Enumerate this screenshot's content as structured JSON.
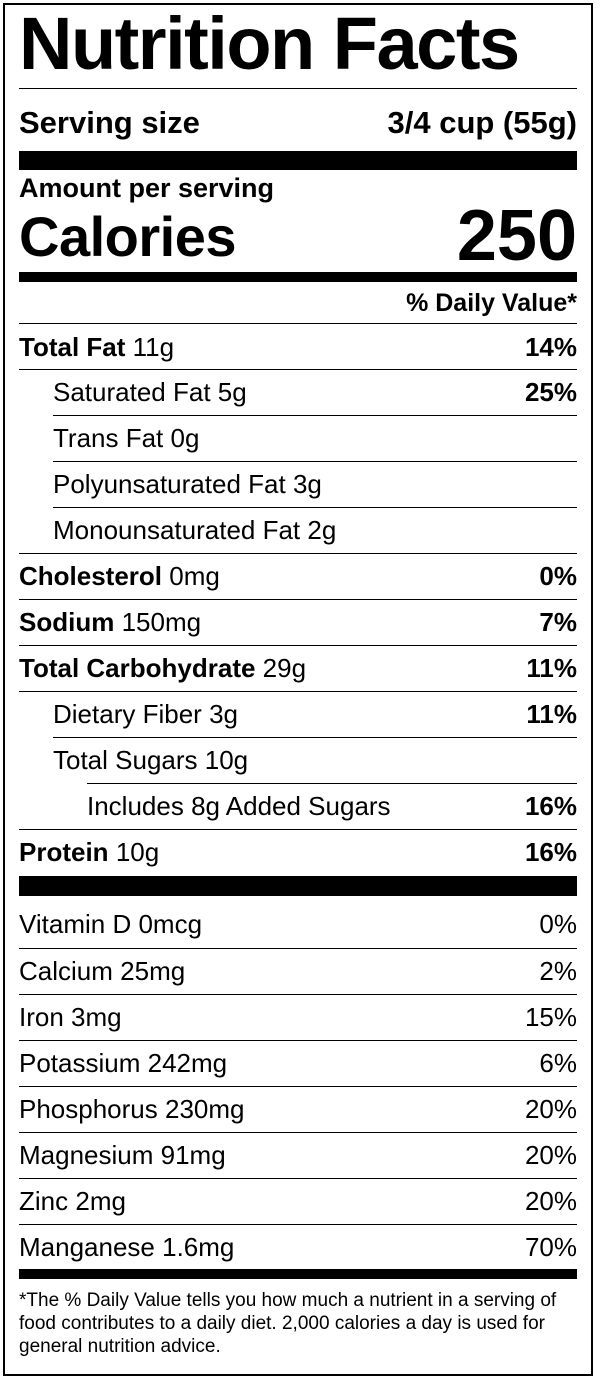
{
  "title": "Nutrition Facts",
  "serving": {
    "label": "Serving size",
    "value": "3/4 cup (55g)"
  },
  "amount_per_serving": "Amount per serving",
  "calories": {
    "label": "Calories",
    "value": "250"
  },
  "daily_value_header": "% Daily Value*",
  "nutrients": [
    {
      "name": "Total Fat",
      "amount": "11g",
      "dv": "14%"
    },
    {
      "name": "Saturated Fat",
      "amount": "5g",
      "dv": "25%"
    },
    {
      "name": "Trans Fat",
      "amount": "0g",
      "dv": ""
    },
    {
      "name": "Polyunsaturated Fat",
      "amount": "3g",
      "dv": ""
    },
    {
      "name": "Monounsaturated Fat",
      "amount": "2g",
      "dv": ""
    },
    {
      "name": "Cholesterol",
      "amount": "0mg",
      "dv": "0%"
    },
    {
      "name": "Sodium",
      "amount": "150mg",
      "dv": "7%"
    },
    {
      "name": "Total Carbohydrate",
      "amount": "29g",
      "dv": "11%"
    },
    {
      "name": "Dietary Fiber",
      "amount": "3g",
      "dv": "11%"
    },
    {
      "name": "Total Sugars",
      "amount": "10g",
      "dv": ""
    },
    {
      "name": "Includes 8g Added Sugars",
      "amount": "",
      "dv": "16%"
    },
    {
      "name": "Protein",
      "amount": "10g",
      "dv": "16%"
    }
  ],
  "vitamins": [
    {
      "name": "Vitamin D",
      "amount": "0mcg",
      "dv": "0%"
    },
    {
      "name": "Calcium",
      "amount": "25mg",
      "dv": "2%"
    },
    {
      "name": "Iron",
      "amount": "3mg",
      "dv": "15%"
    },
    {
      "name": "Potassium",
      "amount": "242mg",
      "dv": "6%"
    },
    {
      "name": "Phosphorus",
      "amount": "230mg",
      "dv": "20%"
    },
    {
      "name": "Magnesium",
      "amount": "91mg",
      "dv": "20%"
    },
    {
      "name": "Zinc",
      "amount": "2mg",
      "dv": "20%"
    },
    {
      "name": "Manganese",
      "amount": "1.6mg",
      "dv": "70%"
    }
  ],
  "footnote": "*The % Daily Value tells you how much a nutrient in a serving of food contributes to a daily diet. 2,000 calories a day is used for general nutrition advice."
}
